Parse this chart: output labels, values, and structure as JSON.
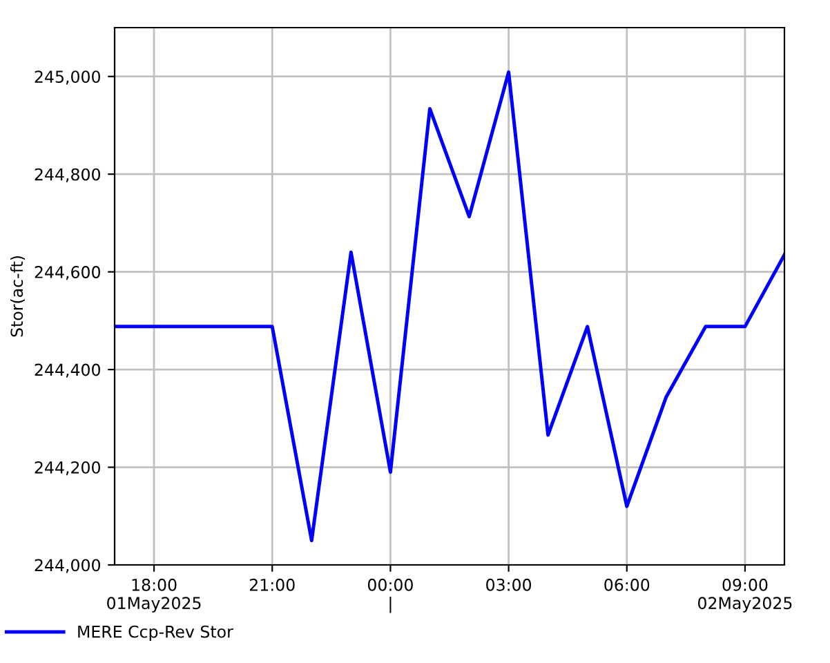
{
  "chart_data": {
    "type": "line",
    "ylabel": "Stor(ac-ft)",
    "x": [
      "2025-05-01T17:00",
      "2025-05-01T18:00",
      "2025-05-01T19:00",
      "2025-05-01T20:00",
      "2025-05-01T21:00",
      "2025-05-01T22:00",
      "2025-05-01T23:00",
      "2025-05-02T00:00",
      "2025-05-02T01:00",
      "2025-05-02T02:00",
      "2025-05-02T03:00",
      "2025-05-02T04:00",
      "2025-05-02T05:00",
      "2025-05-02T06:00",
      "2025-05-02T07:00",
      "2025-05-02T08:00",
      "2025-05-02T09:00",
      "2025-05-02T10:00"
    ],
    "series": [
      {
        "name": "MERE Ccp-Rev Stor",
        "color": "#0000ff",
        "values": [
          244488,
          244488,
          244488,
          244488,
          244488,
          244050,
          244640,
          244190,
          244934,
          244713,
          245009,
          244266,
          244488,
          244120,
          244344,
          244488,
          244488,
          244635
        ]
      }
    ],
    "xlim": [
      "2025-05-01T17:00",
      "2025-05-02T10:00"
    ],
    "xticks": [
      {
        "value": "2025-05-01T18:00",
        "label": "18:00\n01May2025"
      },
      {
        "value": "2025-05-01T21:00",
        "label": "21:00"
      },
      {
        "value": "2025-05-02T00:00",
        "label": "00:00\n|"
      },
      {
        "value": "2025-05-02T03:00",
        "label": "03:00"
      },
      {
        "value": "2025-05-02T06:00",
        "label": "06:00"
      },
      {
        "value": "2025-05-02T09:00",
        "label": "09:00\n02May2025"
      }
    ],
    "ylim": [
      244000,
      245100
    ],
    "yticks": [
      {
        "value": 244000,
        "label": "244,000"
      },
      {
        "value": 244200,
        "label": "244,200"
      },
      {
        "value": 244400,
        "label": "244,400"
      },
      {
        "value": 244600,
        "label": "244,600"
      },
      {
        "value": 244800,
        "label": "244,800"
      },
      {
        "value": 245000,
        "label": "245,000"
      }
    ],
    "grid": true,
    "legend": "bottom left",
    "marker": "none",
    "line_style": "solid"
  }
}
